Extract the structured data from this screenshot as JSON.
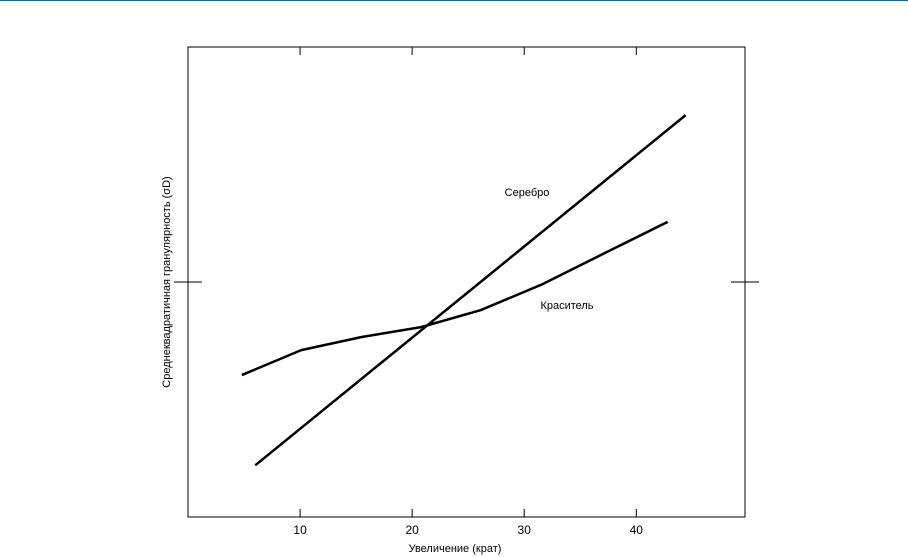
{
  "chart_data": {
    "type": "line",
    "x_label": "Увеличение (крат)",
    "y_label": "Среднеквадратичная гранулярность (σD)",
    "xlim": [
      0,
      49.7
    ],
    "ylim": [
      0,
      100
    ],
    "xticks": [
      10,
      20,
      30,
      40
    ],
    "series": [
      {
        "name": "Серебро",
        "color": "#000000",
        "x": [
          6,
          44.4
        ],
        "values": [
          11,
          85.5
        ]
      },
      {
        "name": "Краситель",
        "color": "#000000",
        "x": [
          4.8,
          10.1,
          15.5,
          20.8,
          26.1,
          31.5,
          36.8,
          42.8
        ],
        "values": [
          30.2,
          35.5,
          38.3,
          40.4,
          44,
          49.4,
          55.7,
          62.8
        ]
      }
    ]
  }
}
